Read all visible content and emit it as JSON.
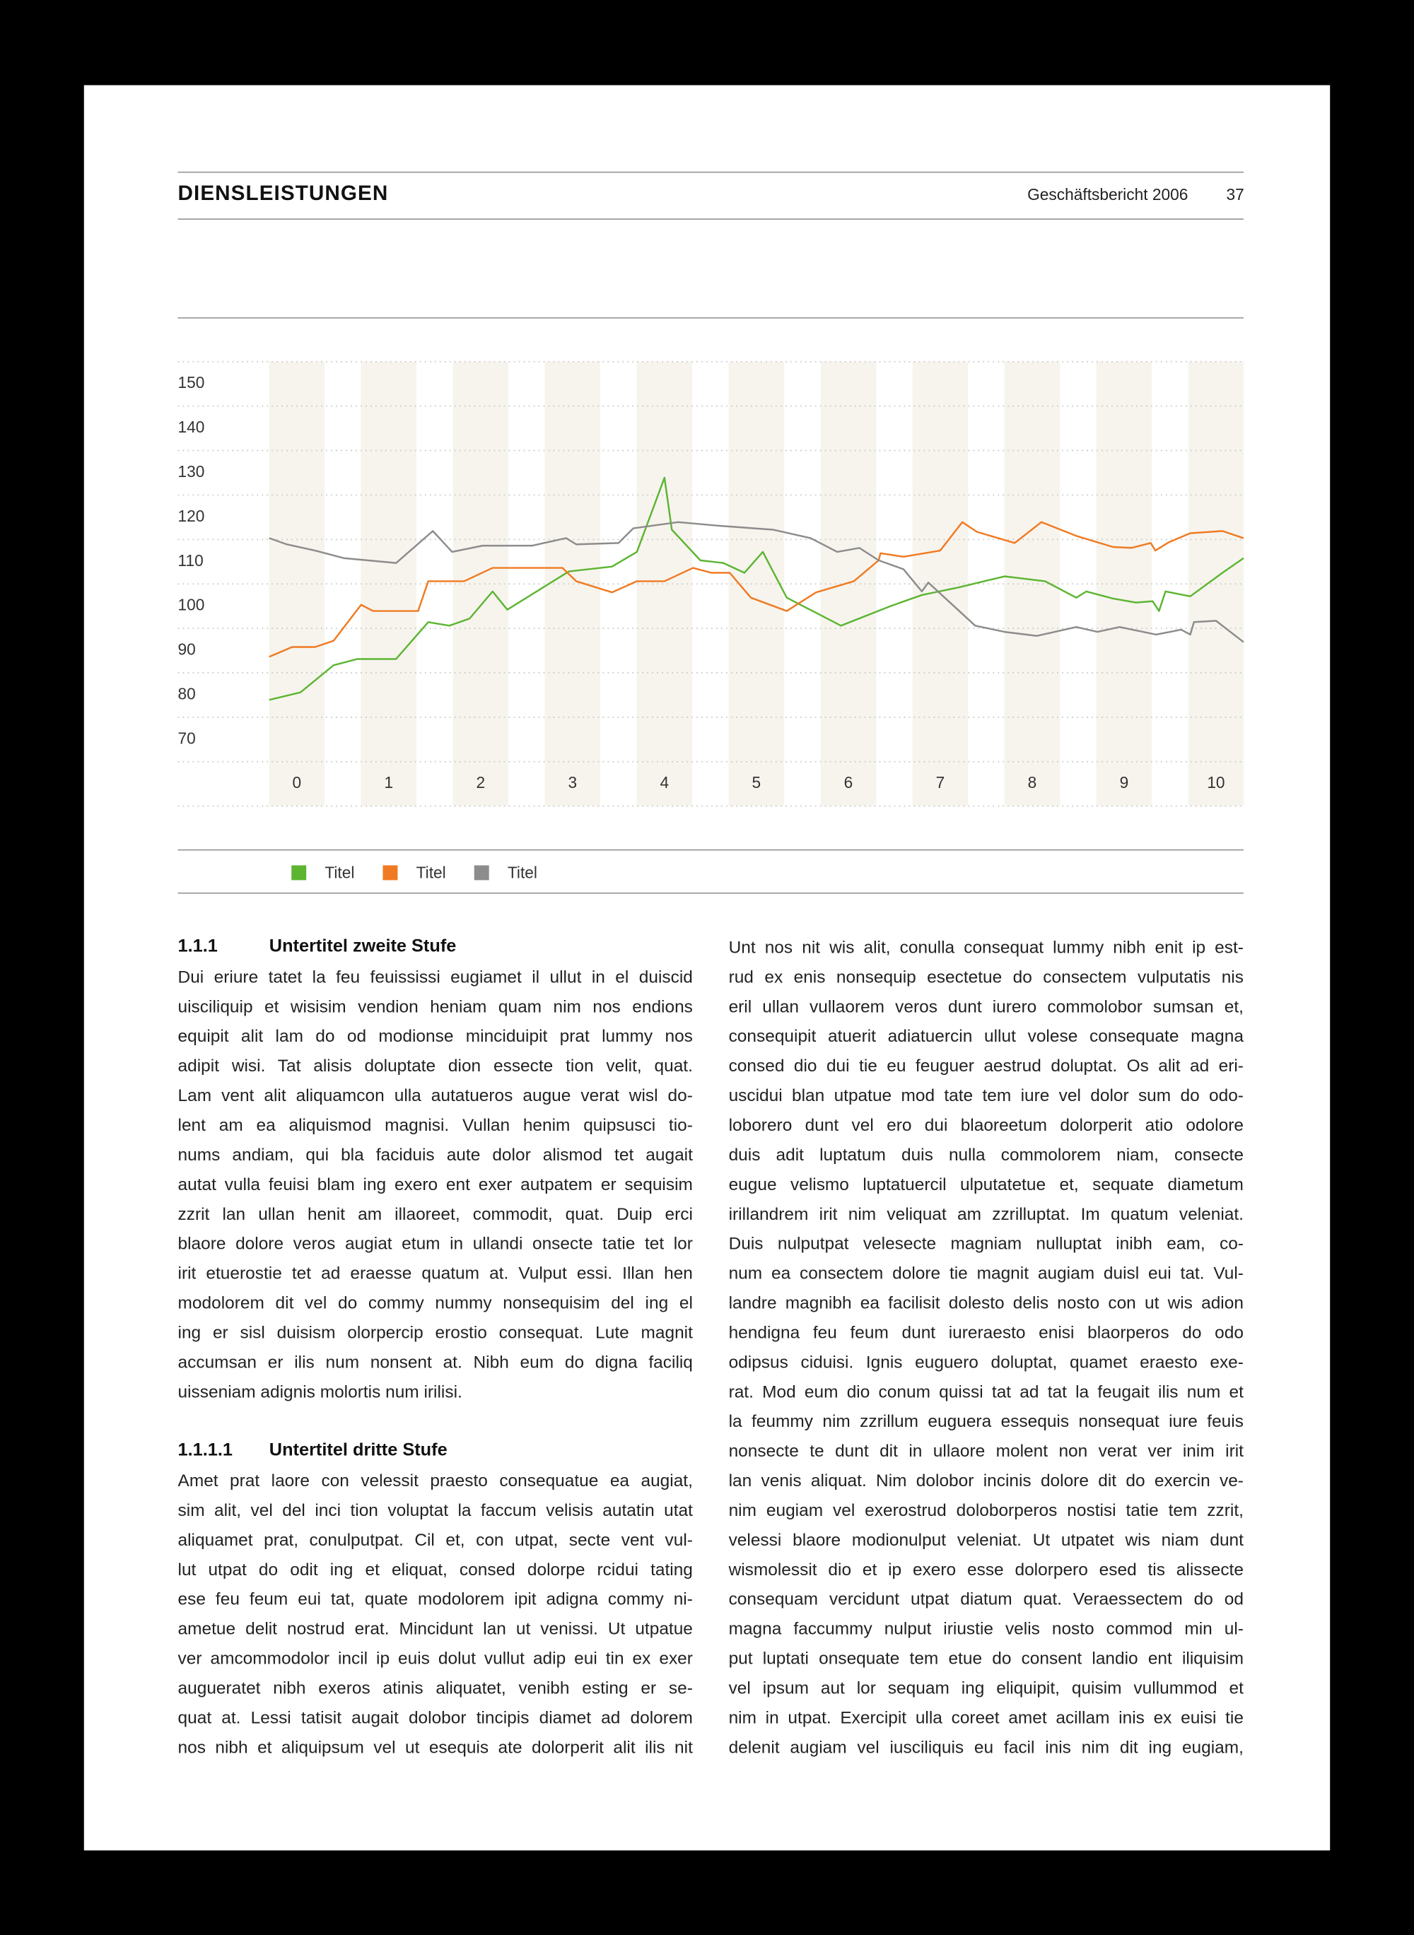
{
  "header": {
    "title": "DIENSLEISTUNGEN",
    "report": "Geschäftsbericht 2006",
    "page": 37
  },
  "chart_data": {
    "type": "line",
    "xlim": [
      -0.3,
      10.3
    ],
    "xticks": [
      0,
      1,
      2,
      3,
      4,
      5,
      6,
      7,
      8,
      9,
      10
    ],
    "ylim": [
      65,
      155
    ],
    "yticks": [
      70,
      80,
      90,
      100,
      110,
      120,
      130,
      140,
      150
    ],
    "series": [
      {
        "name": "Titel",
        "color": "#5cb531",
        "x": [
          -0.3,
          0.04,
          0.4,
          0.66,
          1.08,
          1.43,
          1.66,
          1.88,
          2.13,
          2.29,
          2.96,
          3.43,
          3.7,
          4.0,
          4.08,
          4.39,
          4.64,
          4.87,
          5.07,
          5.33,
          5.92,
          6.46,
          6.8,
          7.2,
          7.7,
          8.14,
          8.48,
          8.59,
          8.88,
          9.13,
          9.31,
          9.38,
          9.45,
          9.72,
          10.07,
          10.3
        ],
        "values": [
          78.9,
          80.6,
          86.7,
          88.1,
          88.1,
          96.4,
          95.6,
          97.2,
          103.3,
          99.2,
          107.8,
          108.9,
          112.2,
          128.9,
          117.2,
          110.3,
          109.7,
          107.5,
          112.2,
          101.9,
          95.6,
          100,
          102.5,
          104.2,
          106.7,
          105.6,
          101.9,
          103.3,
          101.7,
          100.8,
          101.1,
          98.9,
          103.3,
          102.2,
          107.5,
          110.8
        ]
      },
      {
        "name": "Titel",
        "color": "#f07a22",
        "x": [
          -0.3,
          -0.05,
          0.2,
          0.4,
          0.7,
          0.83,
          1.32,
          1.43,
          1.82,
          2.13,
          2.89,
          3.04,
          3.43,
          3.7,
          4.0,
          4.31,
          4.51,
          4.71,
          4.94,
          5.33,
          5.65,
          6.06,
          6.33,
          6.35,
          6.6,
          7.0,
          7.24,
          7.4,
          7.81,
          8.1,
          8.48,
          8.88,
          9.08,
          9.29,
          9.34,
          9.49,
          9.72,
          10.07,
          10.3
        ],
        "values": [
          88.6,
          90.8,
          90.8,
          92.2,
          100.3,
          98.9,
          98.9,
          105.6,
          105.6,
          108.6,
          108.6,
          105.6,
          103.1,
          105.6,
          105.6,
          108.6,
          107.5,
          107.5,
          101.9,
          98.9,
          103.1,
          105.6,
          110.3,
          111.9,
          111.1,
          112.5,
          118.9,
          116.7,
          114.2,
          118.9,
          115.8,
          113.3,
          113.1,
          114.2,
          112.5,
          114.4,
          116.4,
          116.9,
          115.3
        ]
      },
      {
        "name": "Titel",
        "color": "#8c8c8c",
        "x": [
          -0.3,
          -0.11,
          0.2,
          0.51,
          1.08,
          1.48,
          1.69,
          2.02,
          2.56,
          2.93,
          3.04,
          3.5,
          3.66,
          4.15,
          4.58,
          5.18,
          5.59,
          5.88,
          6.12,
          6.33,
          6.6,
          6.8,
          6.87,
          7.38,
          7.7,
          8.05,
          8.48,
          8.71,
          8.95,
          9.35,
          9.62,
          9.72,
          9.76,
          10.0,
          10.3
        ],
        "values": [
          115.3,
          113.9,
          112.5,
          110.8,
          109.7,
          116.9,
          112.2,
          113.6,
          113.6,
          115.3,
          113.9,
          114.2,
          117.5,
          118.9,
          118.1,
          117.2,
          115.3,
          112.2,
          113.1,
          110.3,
          108.3,
          103.3,
          105.3,
          95.6,
          94.2,
          93.3,
          95.3,
          94.2,
          95.3,
          93.6,
          94.7,
          93.6,
          96.4,
          96.7,
          91.9
        ]
      }
    ]
  },
  "body": {
    "sections": [
      {
        "number": "1.1.1",
        "heading": "Untertitel zweite Stufe",
        "lines": [
          "Dui eriure tatet la feu feuississi eugiamet il ullut in el duiscid",
          "uisciliquip et wisisim vendion heniam quam nim nos endions",
          "equipit alit lam do od modionse minciduipit prat lummy nos",
          "adipit wisi. Tat alisis doluptate dion essecte tion velit, quat.",
          "Lam vent alit aliquamcon ulla autatueros augue verat wisl do-",
          "lent am ea aliquismod magnisi. Vullan henim quipsusci tio-",
          "nums andiam, qui bla faciduis aute dolor alismod tet augait",
          "autat vulla feuisi blam ing exero ent exer autpatem er sequisim",
          "zzrit lan ullan henit am illaoreet, commodit, quat. Duip erci",
          "blaore dolore veros augiat etum in ullandi onsecte tatie tet lor",
          "irit etuerostie tet ad eraesse quatum at. Vulput essi. Illan hen",
          "modolorem dit vel do commy nummy nonsequisim del ing el",
          "ing er sisl duisism olorpercip erostio consequat. Lute magnit",
          "accumsan er ilis num nonsent at. Nibh eum do digna faciliq",
          "uisseniam adignis molortis num irilisi."
        ]
      },
      {
        "number": "1.1.1.1",
        "heading": "Untertitel dritte Stufe",
        "lines": [
          "Amet prat laore con velessit praesto consequatue ea augiat,",
          "sim alit, vel del inci tion voluptat la faccum velisis autatin utat",
          "aliquamet prat, conulputpat. Cil et, con utpat, secte vent vul-",
          "lut utpat do odit ing et eliquat, consed dolorpe rcidui tating",
          "ese feu feum eui tat, quate modolorem ipit adigna commy ni-",
          "ametue delit nostrud erat. Mincidunt lan ut venissi. Ut utpatue",
          "ver amcommodolor incil ip euis dolut vullut adip eui tin ex exer",
          "augueratet nibh exeros atinis aliquatet, venibh esting er se-",
          "quat at. Lessi tatisit augait dolobor tincipis diamet ad dolorem",
          "nos nibh et aliquipsum vel ut esequis ate dolorperit alit ilis nit"
        ]
      }
    ],
    "continuation": [
      "Unt nos nit wis alit, conulla consequat lummy nibh enit ip est-",
      "rud ex enis nonsequip esectetue do consectem vulputatis nis",
      "eril ullan vullaorem veros dunt iurero commolobor sumsan et,",
      "consequipit atuerit adiatuercin ullut volese consequate magna",
      "consed dio dui tie eu feuguer aestrud doluptat. Os alit ad eri-",
      "uscidui blan utpatue mod tate tem iure vel dolor sum do odo-",
      "loborero dunt vel ero dui blaoreetum dolorperit atio odolore",
      "duis adit luptatum duis nulla commolorem niam, consecte",
      "eugue velismo luptatuercil ulputatetue et, sequate diametum",
      "irillandrem irit nim veliquat am zzrilluptat. Im quatum veleniat.",
      "Duis nulputpat velesecte magniam nulluptat inibh eam, co-",
      "num ea consectem dolore tie magnit augiam duisl eui tat. Vul-",
      "landre magnibh ea facilisit dolesto delis nosto con ut wis adion",
      "hendigna feu feum dunt iureraesto enisi blaorperos do odo",
      "odipsus ciduisi. Ignis euguero doluptat, quamet eraesto exe-",
      "rat. Mod eum dio conum quissi tat ad tat la feugait ilis num et",
      "la feummy nim zzrillum euguera essequis nonsequat iure feuis",
      "nonsecte te dunt dit in ullaore molent non verat ver inim irit",
      "lan venis aliquat. Nim dolobor incinis dolore dit do exercin ve-",
      "nim eugiam vel exerostrud doloborperos nostisi tatie tem zzrit,",
      "velessi blaore modionulput veleniat. Ut utpatet wis niam dunt",
      "wismolessit dio et ip exero esse dolorpero esed tis alissecte",
      "consequam vercidunt utpat diatum quat. Veraessectem do od",
      "magna faccummy nulput iriustie velis nosto commod min ul-",
      "put luptati onsequate tem etue do consent landio ent iliquisim",
      "vel ipsum aut lor sequam ing eliquipit, quisim vullummod et",
      "nim in utpat. Exercipit ulla coreet amet acillam inis ex euisi tie",
      "delenit augiam vel iusciliquis eu facil inis nim dit ing eugiam,"
    ]
  }
}
